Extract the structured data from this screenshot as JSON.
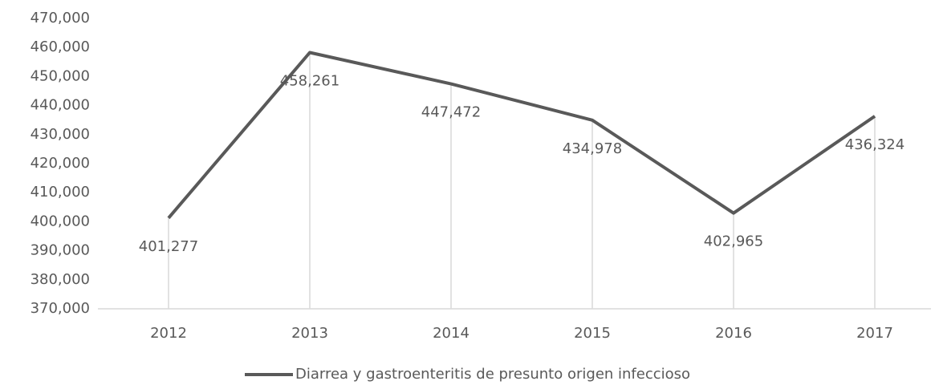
{
  "chart_data": {
    "type": "line",
    "categories": [
      "2012",
      "2013",
      "2014",
      "2015",
      "2016",
      "2017"
    ],
    "series": [
      {
        "name": "Diarrea y gastroenteritis de presunto origen infeccioso",
        "color": "#595959",
        "values": [
          401277,
          458261,
          447472,
          434978,
          402965,
          436324
        ],
        "value_labels": [
          "401,277",
          "458,261",
          "447,472",
          "434,978",
          "402,965",
          "436,324"
        ]
      }
    ],
    "ylim": [
      370000,
      470000
    ],
    "yticks": [
      {
        "value": 370000,
        "label": "370,000"
      },
      {
        "value": 380000,
        "label": "380,000"
      },
      {
        "value": 390000,
        "label": "390,000"
      },
      {
        "value": 400000,
        "label": "400,000"
      },
      {
        "value": 410000,
        "label": "410,000"
      },
      {
        "value": 420000,
        "label": "420,000"
      },
      {
        "value": 430000,
        "label": "430,000"
      },
      {
        "value": 440000,
        "label": "440,000"
      },
      {
        "value": 450000,
        "label": "450,000"
      },
      {
        "value": 460000,
        "label": "460,000"
      },
      {
        "value": 470000,
        "label": "470,000"
      }
    ],
    "legend": "bottom",
    "drop_lines": true
  }
}
